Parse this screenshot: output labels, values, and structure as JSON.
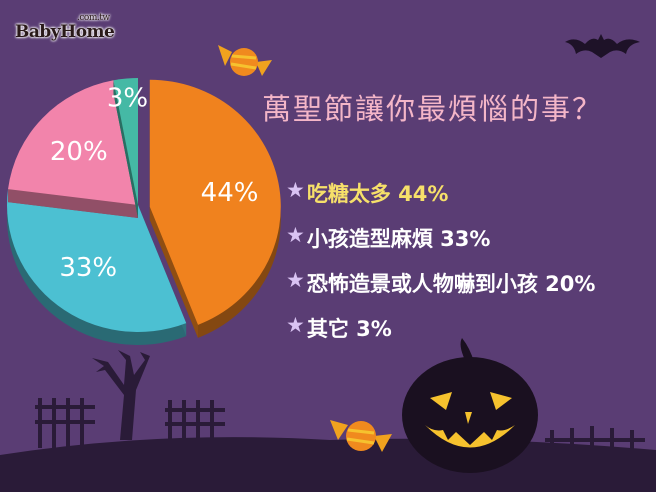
{
  "logo": {
    "text": "BabyHome",
    "suffix": ".com.tw"
  },
  "chart_data": {
    "type": "pie",
    "title": "萬聖節讓你最煩惱的事？",
    "categories": [
      "吃糖太多",
      "小孩造型麻煩",
      "恐怖造景或人物嚇到小孩",
      "其它"
    ],
    "values": [
      44,
      33,
      20,
      3
    ],
    "value_labels": [
      "44%",
      "33%",
      "20%",
      "3%"
    ],
    "colors": [
      "#f0821e",
      "#4cc0d2",
      "#f284ab",
      "#45b9a5"
    ],
    "exploded": [
      "吃糖太多"
    ],
    "legend_position": "right"
  },
  "legend": [
    {
      "label": "吃糖太多 44%",
      "highlight": true
    },
    {
      "label": "小孩造型麻煩 33%"
    },
    {
      "label": "恐怖造景或人物嚇到小孩 20%"
    },
    {
      "label": "其它 3%"
    }
  ],
  "icons": {
    "legend_marker": "star-icon",
    "decor": [
      "bat-icon",
      "candy-icon",
      "pumpkin-icon",
      "tree-icon",
      "fence-icon"
    ]
  }
}
